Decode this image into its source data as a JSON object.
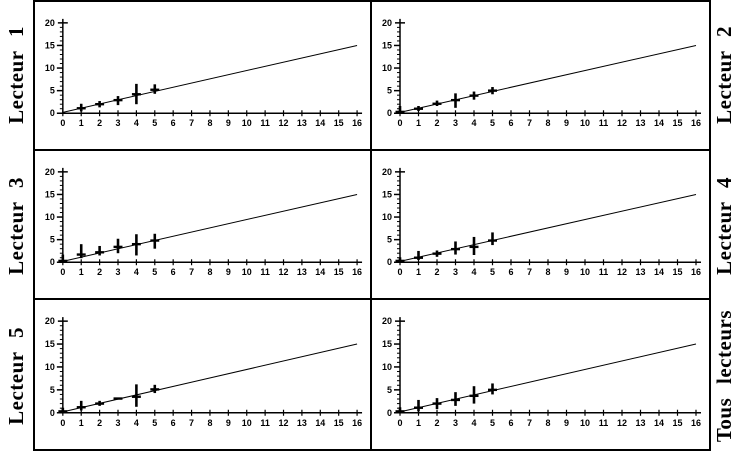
{
  "page": {
    "background": "#ffffff",
    "line_color": "#000000"
  },
  "panel_labels": {
    "left": [
      "Lecteur 1",
      "Lecteur 3",
      "Lecteur 5"
    ],
    "right": [
      "Lecteur 2",
      "Lecteur 4",
      "Tous lecteurs"
    ]
  },
  "chart_data": [
    {
      "type": "line",
      "label": "Lecteur 1",
      "grid_position": {
        "row": 1,
        "col": 1
      },
      "xlim": [
        0,
        16
      ],
      "ylim": [
        0,
        20
      ],
      "x_tick_labels": [
        "0",
        "1",
        "2",
        "3",
        "4",
        "5",
        "6",
        "7",
        "8",
        "9",
        "10",
        "11",
        "12",
        "13",
        "14",
        "15",
        "16"
      ],
      "y_tick_labels": [
        "0",
        "5",
        "10",
        "15",
        "20"
      ],
      "y_minor_tick_step": 1,
      "reference_line": {
        "x": [
          0,
          16
        ],
        "y": [
          0.2,
          15
        ]
      },
      "error_bars": [
        {
          "x": 1,
          "low": 0.4,
          "high": 2.1,
          "mean": 1.1
        },
        {
          "x": 2,
          "low": 1.3,
          "high": 2.7,
          "mean": 2.0
        },
        {
          "x": 3,
          "low": 1.8,
          "high": 3.8,
          "mean": 2.9
        },
        {
          "x": 4,
          "low": 2.0,
          "high": 6.5,
          "mean": 4.2
        },
        {
          "x": 5,
          "low": 4.3,
          "high": 6.4,
          "mean": 5.2
        }
      ]
    },
    {
      "type": "line",
      "label": "Lecteur 2",
      "grid_position": {
        "row": 1,
        "col": 2
      },
      "xlim": [
        0,
        16
      ],
      "ylim": [
        0,
        20
      ],
      "x_tick_labels": [
        "0",
        "1",
        "2",
        "3",
        "4",
        "5",
        "6",
        "7",
        "8",
        "9",
        "10",
        "11",
        "12",
        "13",
        "14",
        "15",
        "16"
      ],
      "y_tick_labels": [
        "0",
        "5",
        "10",
        "15",
        "20"
      ],
      "y_minor_tick_step": 1,
      "reference_line": {
        "x": [
          0,
          16
        ],
        "y": [
          0.2,
          15
        ]
      },
      "error_bars": [
        {
          "x": 0,
          "low": 0.0,
          "high": 1.6,
          "mean": 0.3
        },
        {
          "x": 1,
          "low": 0.5,
          "high": 1.6,
          "mean": 1.0
        },
        {
          "x": 2,
          "low": 1.6,
          "high": 2.8,
          "mean": 2.1
        },
        {
          "x": 3,
          "low": 1.2,
          "high": 4.4,
          "mean": 2.9
        },
        {
          "x": 4,
          "low": 3.0,
          "high": 4.8,
          "mean": 3.9
        },
        {
          "x": 5,
          "low": 4.2,
          "high": 5.8,
          "mean": 5.0
        }
      ]
    },
    {
      "type": "line",
      "label": "Lecteur 3",
      "grid_position": {
        "row": 2,
        "col": 1
      },
      "xlim": [
        0,
        16
      ],
      "ylim": [
        0,
        20
      ],
      "x_tick_labels": [
        "0",
        "1",
        "2",
        "3",
        "4",
        "5",
        "6",
        "7",
        "8",
        "9",
        "10",
        "11",
        "12",
        "13",
        "14",
        "15",
        "16"
      ],
      "y_tick_labels": [
        "0",
        "5",
        "10",
        "15",
        "20"
      ],
      "y_minor_tick_step": 1,
      "reference_line": {
        "x": [
          0,
          16
        ],
        "y": [
          0.2,
          15
        ]
      },
      "error_bars": [
        {
          "x": 0,
          "low": 0.0,
          "high": 1.7,
          "mean": 0.3
        },
        {
          "x": 1,
          "low": 0.9,
          "high": 4.0,
          "mean": 1.7
        },
        {
          "x": 2,
          "low": 1.5,
          "high": 3.6,
          "mean": 2.2
        },
        {
          "x": 3,
          "low": 2.0,
          "high": 5.2,
          "mean": 3.4
        },
        {
          "x": 4,
          "low": 1.5,
          "high": 6.2,
          "mean": 4.0
        },
        {
          "x": 5,
          "low": 3.0,
          "high": 6.3,
          "mean": 4.8
        }
      ]
    },
    {
      "type": "line",
      "label": "Lecteur 4",
      "grid_position": {
        "row": 2,
        "col": 2
      },
      "xlim": [
        0,
        16
      ],
      "ylim": [
        0,
        20
      ],
      "x_tick_labels": [
        "0",
        "1",
        "2",
        "3",
        "4",
        "5",
        "6",
        "7",
        "8",
        "9",
        "10",
        "11",
        "12",
        "13",
        "14",
        "15",
        "16"
      ],
      "y_tick_labels": [
        "0",
        "5",
        "10",
        "15",
        "20"
      ],
      "y_minor_tick_step": 1,
      "reference_line": {
        "x": [
          0,
          16
        ],
        "y": [
          0.2,
          15
        ]
      },
      "error_bars": [
        {
          "x": 0,
          "low": 0.0,
          "high": 1.1,
          "mean": 0.3
        },
        {
          "x": 1,
          "low": 0.5,
          "high": 2.5,
          "mean": 1.0
        },
        {
          "x": 2,
          "low": 1.2,
          "high": 2.6,
          "mean": 1.9
        },
        {
          "x": 3,
          "low": 1.7,
          "high": 4.6,
          "mean": 2.9
        },
        {
          "x": 4,
          "low": 1.6,
          "high": 5.6,
          "mean": 3.4
        },
        {
          "x": 5,
          "low": 3.8,
          "high": 6.6,
          "mean": 4.8
        }
      ]
    },
    {
      "type": "line",
      "label": "Lecteur 5",
      "grid_position": {
        "row": 3,
        "col": 1
      },
      "xlim": [
        0,
        16
      ],
      "ylim": [
        0,
        20
      ],
      "x_tick_labels": [
        "0",
        "1",
        "2",
        "3",
        "4",
        "5",
        "6",
        "7",
        "8",
        "9",
        "10",
        "11",
        "12",
        "13",
        "14",
        "15",
        "16"
      ],
      "y_tick_labels": [
        "0",
        "5",
        "10",
        "15",
        "20"
      ],
      "y_minor_tick_step": 1,
      "reference_line": {
        "x": [
          0,
          16
        ],
        "y": [
          0.2,
          15
        ]
      },
      "error_bars": [
        {
          "x": 0,
          "low": 0.0,
          "high": 1.1,
          "mean": 0.3
        },
        {
          "x": 1,
          "low": 0.5,
          "high": 2.6,
          "mean": 1.2
        },
        {
          "x": 2,
          "low": 1.5,
          "high": 2.6,
          "mean": 2.0
        },
        {
          "x": 3,
          "low": 3.0,
          "high": 3.3,
          "mean": 3.1
        },
        {
          "x": 4,
          "low": 1.3,
          "high": 6.2,
          "mean": 3.5
        },
        {
          "x": 5,
          "low": 4.3,
          "high": 6.1,
          "mean": 5.1
        }
      ]
    },
    {
      "type": "line",
      "label": "Tous lecteurs",
      "grid_position": {
        "row": 3,
        "col": 2
      },
      "xlim": [
        0,
        16
      ],
      "ylim": [
        0,
        20
      ],
      "x_tick_labels": [
        "0",
        "1",
        "2",
        "3",
        "4",
        "5",
        "6",
        "7",
        "8",
        "9",
        "10",
        "11",
        "12",
        "13",
        "14",
        "15",
        "16"
      ],
      "y_tick_labels": [
        "0",
        "5",
        "10",
        "15",
        "20"
      ],
      "y_minor_tick_step": 1,
      "reference_line": {
        "x": [
          0,
          16
        ],
        "y": [
          0.2,
          15
        ]
      },
      "error_bars": [
        {
          "x": 0,
          "low": 0.0,
          "high": 1.2,
          "mean": 0.3
        },
        {
          "x": 1,
          "low": 0.3,
          "high": 2.8,
          "mean": 1.1
        },
        {
          "x": 2,
          "low": 0.8,
          "high": 3.2,
          "mean": 2.0
        },
        {
          "x": 3,
          "low": 1.5,
          "high": 4.5,
          "mean": 2.8
        },
        {
          "x": 4,
          "low": 2.0,
          "high": 5.8,
          "mean": 3.7
        },
        {
          "x": 5,
          "low": 4.0,
          "high": 6.4,
          "mean": 5.0
        }
      ]
    }
  ]
}
